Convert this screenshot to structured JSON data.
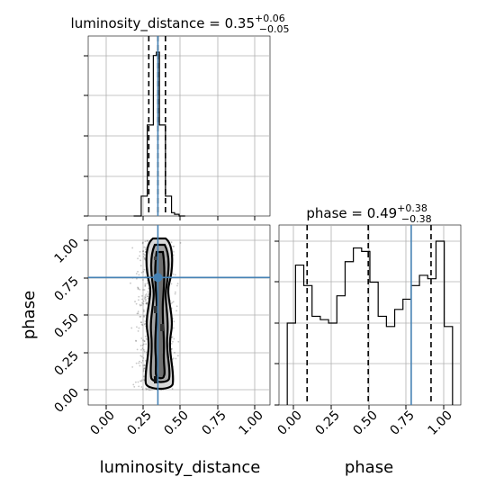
{
  "figure": {
    "titles": {
      "luminosity_distance": {
        "name": "luminosity_distance",
        "median": "0.35",
        "plus": "+0.06",
        "minus": "−0.05"
      },
      "phase": {
        "name": "phase",
        "median": "0.49",
        "plus": "+0.38",
        "minus": "−0.38"
      }
    },
    "xlabels": {
      "bottom_left": "luminosity_distance",
      "bottom_right": "phase"
    },
    "ylabels": {
      "left_middle": "phase"
    }
  },
  "chart_data": [
    {
      "type": "histogram",
      "title": "luminosity_distance = 0.35 +0.06 −0.05",
      "x_range": [
        -0.1,
        1.1
      ],
      "bin_edges": [
        0.2,
        0.25,
        0.27,
        0.29,
        0.31,
        0.33,
        0.35,
        0.37,
        0.39,
        0.41,
        0.43,
        0.45,
        0.47,
        0.5,
        0.54
      ],
      "counts": [
        0.0,
        0.12,
        0.12,
        0.55,
        0.55,
        0.97,
        0.99,
        0.55,
        0.55,
        0.12,
        0.12,
        0.02,
        0.01,
        0.0
      ],
      "quantile_lines": [
        0.3,
        0.36,
        0.41
      ],
      "truth": 0.36,
      "color_hist": "#000000",
      "color_truth": "#4682b4"
    },
    {
      "type": "scatter_density",
      "xlabel": "luminosity_distance",
      "ylabel": "phase",
      "x_range": [
        -0.1,
        1.1
      ],
      "y_range": [
        -0.1,
        1.1
      ],
      "x_ticks": [
        "0.00",
        "0.25",
        "0.50",
        "0.75",
        "1.00"
      ],
      "y_ticks": [
        "0.00",
        "0.25",
        "0.50",
        "0.75",
        "1.00"
      ],
      "truth": {
        "x": 0.36,
        "y": 0.75
      },
      "contours_note": "density contours around samples concentrated at luminosity_distance ~0.35, spanning phase 0–1"
    },
    {
      "type": "histogram",
      "title": "phase = 0.49 +0.38 −0.38",
      "xlabel": "phase",
      "x_range": [
        -0.05,
        1.05
      ],
      "x_ticks": [
        "0.00",
        "0.25",
        "0.50",
        "0.75",
        "1.00"
      ],
      "bin_edges": [
        0.0,
        0.05,
        0.1,
        0.15,
        0.2,
        0.25,
        0.3,
        0.35,
        0.4,
        0.45,
        0.5,
        0.55,
        0.6,
        0.65,
        0.7,
        0.75,
        0.8,
        0.85,
        0.9,
        0.95,
        1.0
      ],
      "counts": [
        0.48,
        0.82,
        0.7,
        0.52,
        0.5,
        0.48,
        0.64,
        0.84,
        0.92,
        0.9,
        0.72,
        0.52,
        0.46,
        0.56,
        0.62,
        0.7,
        0.76,
        0.74,
        0.96,
        0.46
      ],
      "quantile_lines": [
        0.12,
        0.49,
        0.87
      ],
      "truth": 0.75,
      "color_hist": "#000000",
      "color_truth": "#4682b4"
    }
  ]
}
